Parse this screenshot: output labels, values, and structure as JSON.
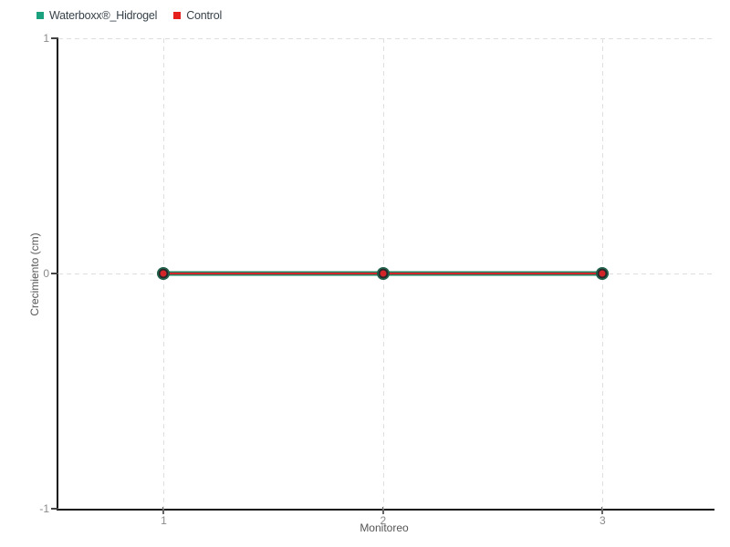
{
  "page": {
    "background": "#ffffff"
  },
  "legend": {
    "items": [
      {
        "label": "Waterboxx®_Hidrogel",
        "color": "#1ba17e"
      },
      {
        "label": "Control",
        "color": "#e5201d"
      }
    ]
  },
  "axes": {
    "x": {
      "label": "Monitoreo",
      "tick_labels": [
        "1",
        "2",
        "3"
      ]
    },
    "y": {
      "label": "Crecimiento (cm)",
      "tick_labels": [
        "1",
        "0",
        "-1"
      ]
    }
  },
  "chart_data": {
    "type": "line",
    "x": [
      1,
      2,
      3
    ],
    "series": [
      {
        "name": "Waterboxx®_Hidrogel",
        "values": [
          0,
          0,
          0
        ],
        "color": "#27805f"
      },
      {
        "name": "Control",
        "values": [
          0,
          0,
          0
        ],
        "color": "#d3262a"
      }
    ],
    "title": "",
    "xlabel": "Monitoreo",
    "ylabel": "Crecimiento (cm)",
    "xlim": [
      0.52,
      3.51
    ],
    "ylim": [
      -1,
      1
    ],
    "x_ticks": [
      1,
      2,
      3
    ],
    "y_ticks": [
      1,
      0,
      -1
    ],
    "grid": "dashed-major",
    "legend_position": "top-left",
    "colors": {
      "grid": "#dedede",
      "axis": "#111111",
      "tick_label": "#8a8a8a",
      "axis_label": "#555555",
      "legend_text": "#37424a"
    }
  }
}
